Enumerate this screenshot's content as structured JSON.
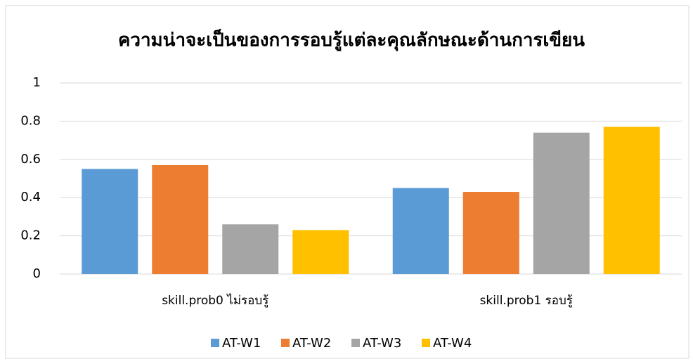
{
  "chart_data": {
    "type": "bar",
    "title": "ความน่าจะเป็นของการรอบรู้แต่ละคุณลักษณะด้านการเขียน",
    "categories": [
      "skill.prob0 ไม่รอบรู้",
      "skill.prob1 รอบรู้"
    ],
    "series": [
      {
        "name": "AT-W1",
        "color": "#5b9bd5",
        "values": [
          0.55,
          0.45
        ]
      },
      {
        "name": "AT-W2",
        "color": "#ed7d31",
        "values": [
          0.57,
          0.43
        ]
      },
      {
        "name": "AT-W3",
        "color": "#a5a5a5",
        "values": [
          0.26,
          0.74
        ]
      },
      {
        "name": "AT-W4",
        "color": "#ffc000",
        "values": [
          0.23,
          0.77
        ]
      }
    ],
    "ylim": [
      0,
      1
    ],
    "yticks": [
      0,
      0.2,
      0.4,
      0.6,
      0.8,
      1
    ],
    "grid": true,
    "legend": "bottom"
  }
}
